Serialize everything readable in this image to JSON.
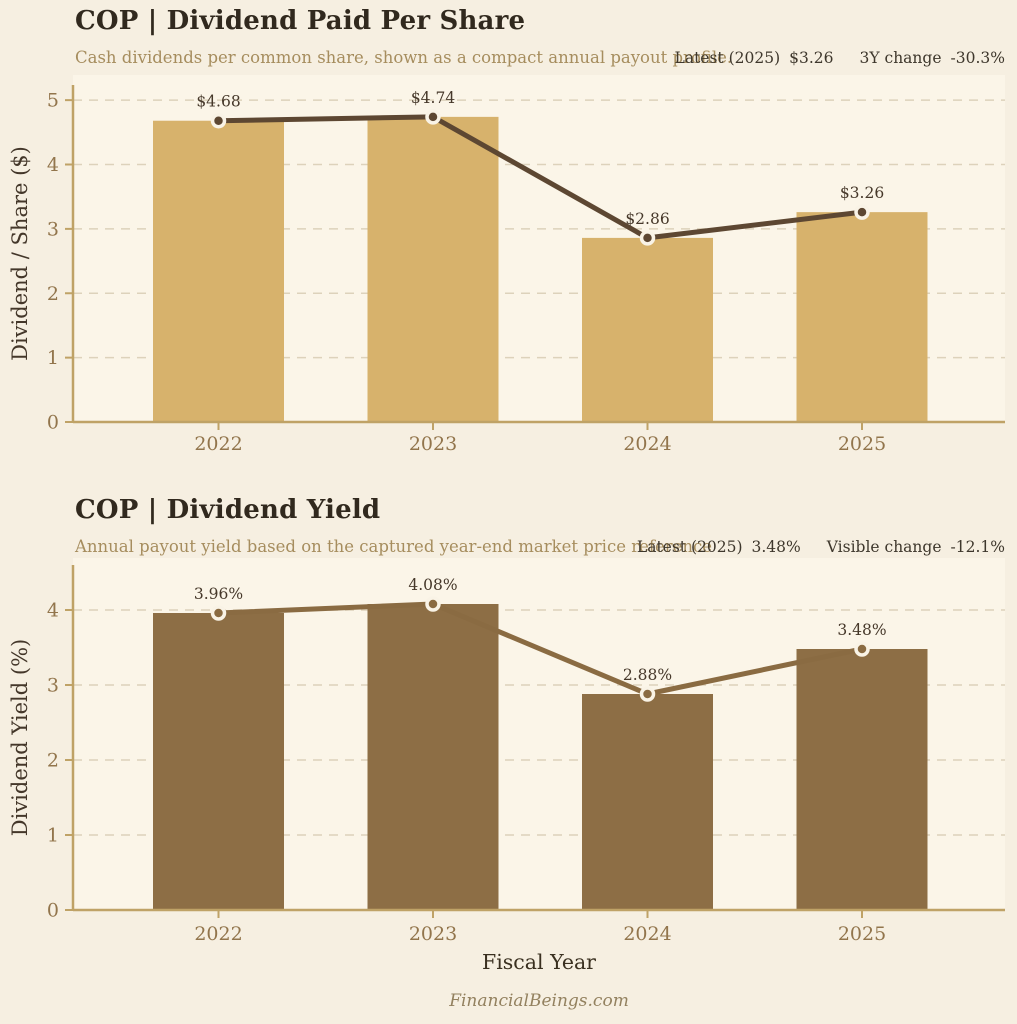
{
  "page": {
    "xlabel": "Fiscal Year",
    "footer": "FinancialBeings.com",
    "background": "#f6efe1"
  },
  "chart_data": [
    {
      "type": "bar",
      "overlay": "line",
      "title": "COP | Dividend Paid Per Share",
      "subtitle": "Cash dividends per common share, shown as a compact annual payout profile.",
      "annotation": {
        "latest_label": "Latest (2025)",
        "latest_value": "$3.26",
        "change_label": "3Y change",
        "change_value": "-30.3%"
      },
      "categories": [
        "2022",
        "2023",
        "2024",
        "2025"
      ],
      "values": [
        4.68,
        4.74,
        2.86,
        3.26
      ],
      "data_labels": [
        "$4.68",
        "$4.74",
        "$2.86",
        "$3.26"
      ],
      "xlabel": "Fiscal Year",
      "ylabel": "Dividend / Share ($)",
      "ylim": [
        0,
        5.235
      ],
      "yticks": [
        0,
        1,
        2,
        3,
        4,
        5
      ],
      "grid": true,
      "legend": false,
      "colors": {
        "bar": "#d7b26c",
        "line": "#5d4732",
        "axis": "#bfa266",
        "grid": "#ddd2bb",
        "tick": "#92754c",
        "data_label": "#46382a",
        "ylabel": "#44372a",
        "plot_bg": "#fbf5e8",
        "halo": "#f9f3e6"
      }
    },
    {
      "type": "bar",
      "overlay": "line",
      "title": "COP | Dividend Yield",
      "subtitle": "Annual payout yield based on the captured year-end market price reference",
      "annotation": {
        "latest_label": "Latest (2025)",
        "latest_value": "3.48%",
        "change_label": "Visible change",
        "change_value": "-12.1%"
      },
      "categories": [
        "2022",
        "2023",
        "2024",
        "2025"
      ],
      "values": [
        3.96,
        4.08,
        2.88,
        3.48
      ],
      "data_labels": [
        "3.96%",
        "4.08%",
        "2.88%",
        "3.48%"
      ],
      "xlabel": "Fiscal Year",
      "ylabel": "Dividend Yield (%)",
      "ylim": [
        0,
        4.6
      ],
      "yticks": [
        0,
        1,
        2,
        3,
        4
      ],
      "grid": true,
      "legend": false,
      "colors": {
        "bar": "#8d6e45",
        "line": "#8a6b42",
        "axis": "#bfa266",
        "grid": "#ddd2bb",
        "tick": "#92754c",
        "data_label": "#46382a",
        "ylabel": "#44372a",
        "plot_bg": "#fbf5e8",
        "halo": "#f9f3e6"
      }
    }
  ]
}
